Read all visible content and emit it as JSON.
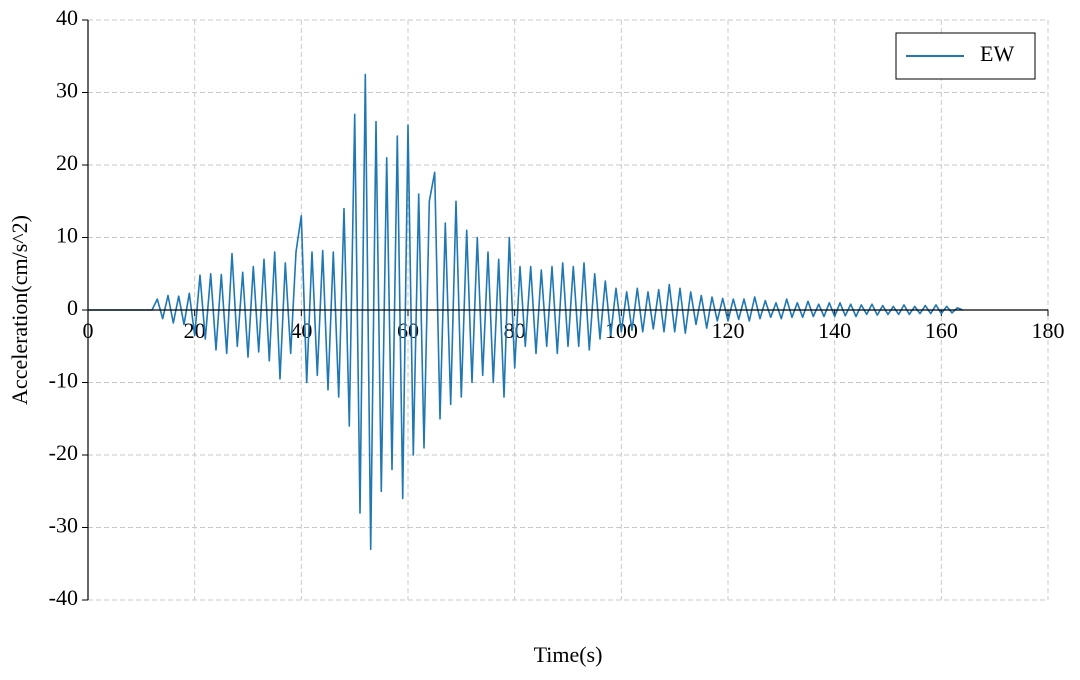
{
  "chart_data": {
    "type": "line",
    "x_label": "Time(s)",
    "y_label": "Acceleration(cm/s^2)",
    "xlim": [
      0,
      180
    ],
    "xticks": [
      0,
      20,
      40,
      60,
      80,
      100,
      120,
      140,
      160,
      180
    ],
    "ylim": [
      -40,
      40
    ],
    "yticks": [
      -40,
      -30,
      -20,
      -10,
      0,
      10,
      20,
      30,
      40
    ],
    "grid": true,
    "legend": "upper right",
    "x": [
      0,
      12,
      13,
      14,
      15,
      16,
      17,
      18,
      19,
      20,
      21,
      22,
      23,
      24,
      25,
      26,
      27,
      28,
      29,
      30,
      31,
      32,
      33,
      34,
      35,
      36,
      37,
      38,
      39,
      40,
      41,
      42,
      43,
      44,
      45,
      46,
      47,
      48,
      49,
      50,
      51,
      52,
      53,
      54,
      55,
      56,
      57,
      58,
      59,
      60,
      61,
      62,
      63,
      64,
      65,
      66,
      67,
      68,
      69,
      70,
      71,
      72,
      73,
      74,
      75,
      76,
      77,
      78,
      79,
      80,
      81,
      82,
      83,
      84,
      85,
      86,
      87,
      88,
      89,
      90,
      91,
      92,
      93,
      94,
      95,
      96,
      97,
      98,
      99,
      100,
      101,
      102,
      103,
      104,
      105,
      106,
      107,
      108,
      109,
      110,
      111,
      112,
      113,
      114,
      115,
      116,
      117,
      118,
      119,
      120,
      121,
      122,
      123,
      124,
      125,
      126,
      127,
      128,
      129,
      130,
      131,
      132,
      133,
      134,
      135,
      136,
      137,
      138,
      139,
      140,
      141,
      142,
      143,
      144,
      145,
      146,
      147,
      148,
      149,
      150,
      151,
      152,
      153,
      154,
      155,
      156,
      157,
      158,
      159,
      160,
      161,
      162,
      163,
      164
    ],
    "series": [
      {
        "name": "EW",
        "color": "#1f77b4",
        "values": [
          0,
          0,
          1.5,
          -1.2,
          2,
          -1.8,
          1.9,
          -2,
          2.3,
          -3.5,
          4.8,
          -4,
          5,
          -5.5,
          4.9,
          -6,
          7.8,
          -5,
          5.2,
          -6.5,
          6,
          -5.8,
          7,
          -7,
          8,
          -9.5,
          6.5,
          -6,
          8,
          13,
          -10,
          8,
          -9,
          8.2,
          -11,
          8,
          -12,
          14,
          -16,
          27,
          -28,
          32.5,
          -33,
          26,
          -25,
          21,
          -22,
          24,
          -26,
          25.5,
          -20,
          16,
          -19,
          15,
          19,
          -15,
          12,
          -13,
          15,
          -12,
          11,
          -10,
          10,
          -9,
          8,
          -10,
          7,
          -12,
          10,
          -8,
          6,
          -5,
          6,
          -6,
          5.5,
          -5,
          6,
          -6,
          6.5,
          -5,
          6,
          -5,
          6.5,
          -5.5,
          5,
          -4,
          4,
          -3.5,
          3,
          -3,
          2.5,
          -2.8,
          3,
          -3,
          2.5,
          -2.6,
          2.8,
          -3,
          3.5,
          -3,
          3,
          -3.2,
          2.5,
          -2,
          2,
          -2.5,
          1.8,
          -1.5,
          1.6,
          -1.5,
          1.5,
          -1.3,
          1.5,
          -1.5,
          1.8,
          -1.2,
          1.3,
          -1,
          1,
          -1.2,
          1.5,
          -1,
          1,
          -1,
          1.2,
          -0.9,
          0.8,
          -0.9,
          1,
          -0.9,
          1,
          -0.8,
          0.8,
          -0.9,
          0.7,
          -0.6,
          0.8,
          -0.7,
          0.6,
          -0.6,
          0.5,
          -0.6,
          0.7,
          -0.6,
          0.5,
          -0.5,
          0.6,
          -0.5,
          0.7,
          -0.5,
          0.5,
          -0.4,
          0.3,
          0
        ]
      }
    ]
  }
}
